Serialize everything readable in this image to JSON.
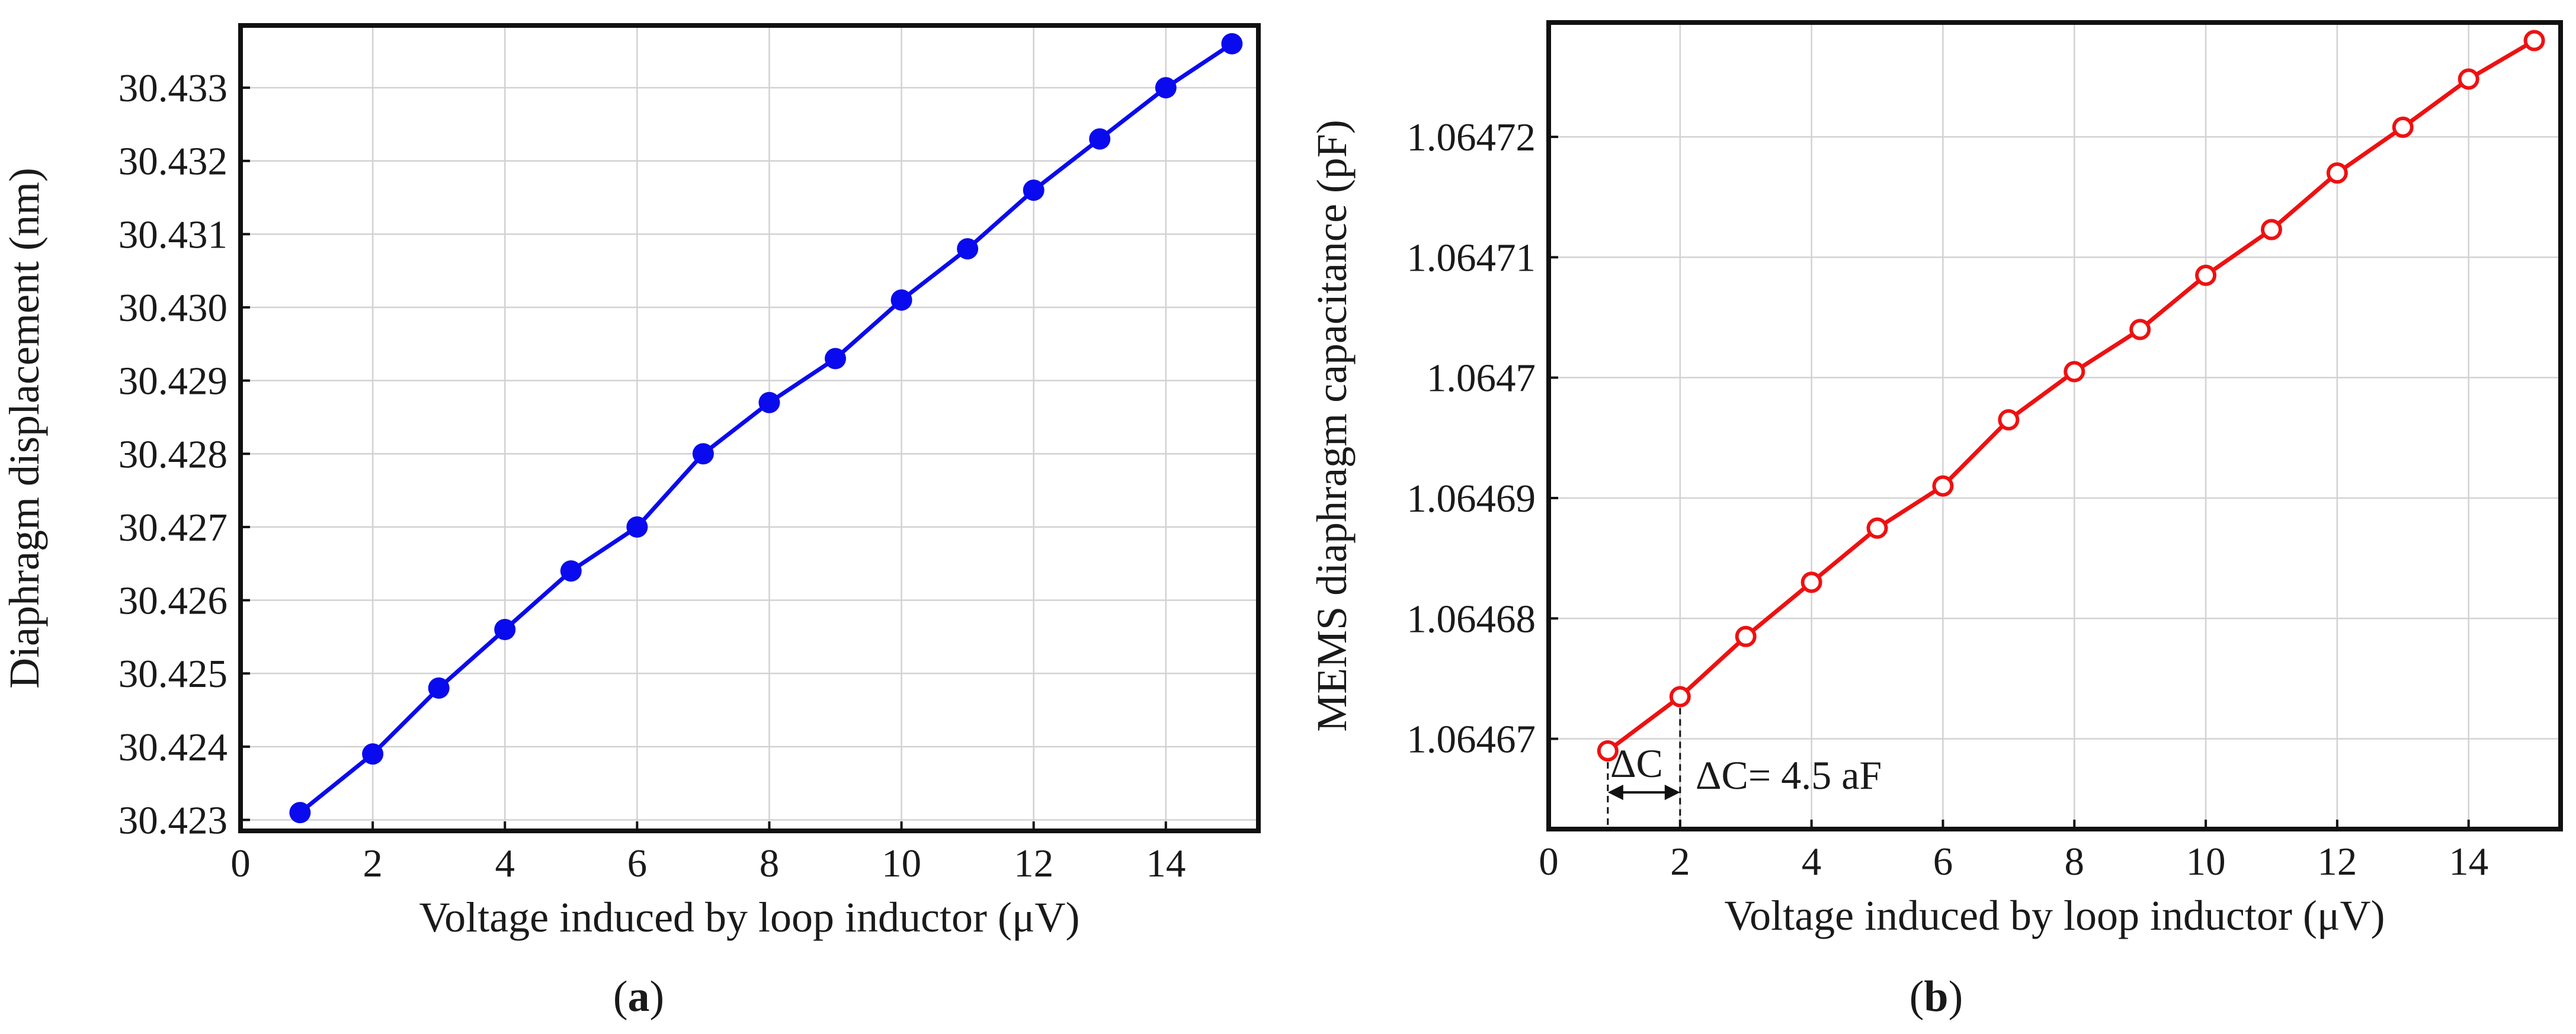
{
  "chart_data": [
    {
      "type": "line",
      "panel_label": "a",
      "xlabel": "Voltage induced by loop inductor (μV)",
      "ylabel": "Diaphragm displacement (nm)",
      "xlim": [
        0,
        15.4
      ],
      "ylim": [
        30.42285,
        30.43385
      ],
      "xticks": [
        0,
        2,
        4,
        6,
        8,
        10,
        12,
        14
      ],
      "yticks": [
        30.423,
        30.424,
        30.425,
        30.426,
        30.427,
        30.428,
        30.429,
        30.43,
        30.431,
        30.432,
        30.433
      ],
      "ytick_labels": [
        "30.423",
        "30.424",
        "30.425",
        "30.426",
        "30.427",
        "30.428",
        "30.429",
        "30.430",
        "30.431",
        "30.432",
        "30.433"
      ],
      "grid": true,
      "series": [
        {
          "name": "displacement",
          "color": "#0a0aee",
          "marker": "filled-circle",
          "x": [
            0.9,
            2,
            3,
            4,
            5,
            6,
            7,
            8,
            9,
            10,
            11,
            12,
            13,
            14,
            15
          ],
          "y": [
            30.4231,
            30.4239,
            30.4248,
            30.4256,
            30.4264,
            30.427,
            30.428,
            30.4287,
            30.4293,
            30.4301,
            30.4308,
            30.4316,
            30.4323,
            30.433,
            30.4336
          ]
        }
      ]
    },
    {
      "type": "line",
      "panel_label": "b",
      "xlabel": "Voltage induced by loop inductor (μV)",
      "ylabel": "MEMS diaphragm capacitance (pF)",
      "xlim": [
        0,
        15.4
      ],
      "ylim": [
        1.0646625,
        1.0647295
      ],
      "xticks": [
        0,
        2,
        4,
        6,
        8,
        10,
        12,
        14
      ],
      "yticks": [
        1.06467,
        1.06468,
        1.06469,
        1.0647,
        1.06471,
        1.06472
      ],
      "ytick_labels": [
        "1.06467",
        "1.06468",
        "1.06469",
        "1.0647",
        "1.06471",
        "1.06472"
      ],
      "grid": true,
      "series": [
        {
          "name": "capacitance",
          "color": "#ee1111",
          "marker": "open-circle",
          "x": [
            0.9,
            2,
            3,
            4,
            5,
            6,
            7,
            8,
            9,
            10,
            11,
            12,
            13,
            14,
            15
          ],
          "y": [
            1.064669,
            1.0646735,
            1.0646785,
            1.064683,
            1.0646875,
            1.064691,
            1.0646965,
            1.0647005,
            1.064704,
            1.0647085,
            1.0647123,
            1.064717,
            1.0647208,
            1.0647248,
            1.064728
          ]
        }
      ],
      "annotations": {
        "delta_short": "ΔC",
        "delta_full": "ΔC= 4.5 aF"
      }
    }
  ]
}
